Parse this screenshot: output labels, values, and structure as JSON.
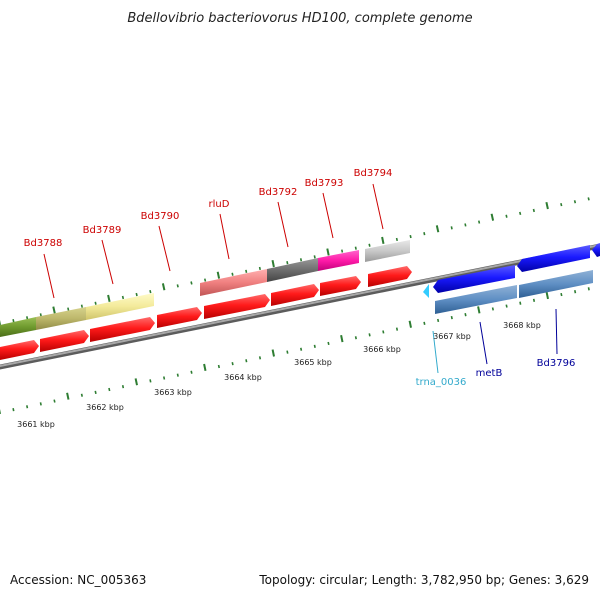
{
  "title": "Bdellovibrio bacteriovorus HD100, complete genome",
  "footer": {
    "accession": "Accession: NC_005363",
    "summary": "Topology: circular; Length: 3,782,950 bp; Genes: 3,629"
  },
  "colors": {
    "backbone": "#888888",
    "tick": "#2e7d32",
    "tick_minor": "#1b5e20",
    "label_red": "#cc0000",
    "label_blue": "#000099",
    "label_cyan": "#33aacc"
  },
  "kbp_labels": [
    "3661 kbp",
    "3662 kbp",
    "3663 kbp",
    "3664 kbp",
    "3665 kbp",
    "3666 kbp",
    "3667 kbp",
    "3668 kbp"
  ],
  "gene_labels": [
    {
      "text": "Bd3788",
      "color": "#cc0000"
    },
    {
      "text": "Bd3789",
      "color": "#cc0000"
    },
    {
      "text": "Bd3790",
      "color": "#cc0000"
    },
    {
      "text": "rluD",
      "color": "#cc0000"
    },
    {
      "text": "Bd3792",
      "color": "#cc0000"
    },
    {
      "text": "Bd3793",
      "color": "#cc0000"
    },
    {
      "text": "Bd3794",
      "color": "#cc0000"
    },
    {
      "text": "trna_0036",
      "color": "#33aacc"
    },
    {
      "text": "metB",
      "color": "#000099"
    },
    {
      "text": "Bd3796",
      "color": "#000099"
    }
  ]
}
